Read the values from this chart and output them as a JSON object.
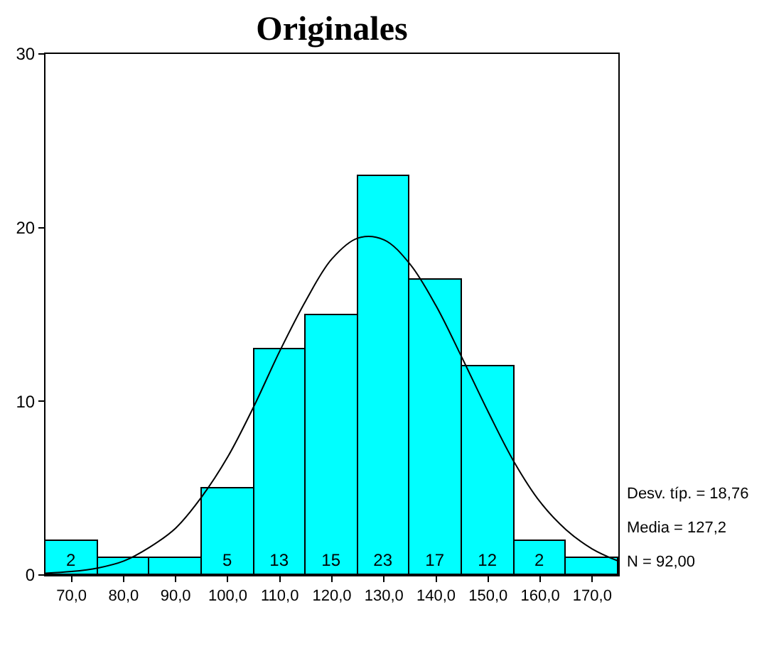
{
  "chart_data": {
    "type": "histogram",
    "title": "Originales",
    "bins": [
      65,
      75,
      85,
      95,
      105,
      115,
      125,
      135,
      145,
      155,
      165,
      175
    ],
    "values": [
      2,
      1,
      1,
      5,
      13,
      15,
      23,
      17,
      12,
      2,
      1
    ],
    "value_labels": [
      "2",
      null,
      null,
      "5",
      "13",
      "15",
      "23",
      "17",
      "12",
      "2",
      null
    ],
    "color": "#00ffff",
    "series": [
      {
        "type": "line",
        "color": "#000000",
        "x": [
          65,
          70,
          75,
          80,
          85,
          90,
          95,
          100,
          105,
          110,
          115,
          120,
          125,
          130,
          135,
          140,
          145,
          150,
          155,
          160,
          165,
          170,
          175
        ],
        "values": [
          0.1,
          0.2,
          0.4,
          0.8,
          1.6,
          2.7,
          4.5,
          6.8,
          9.7,
          12.9,
          15.8,
          18.2,
          19.4,
          19.3,
          17.9,
          15.5,
          12.5,
          9.4,
          6.5,
          4.2,
          2.6,
          1.5,
          0.8
        ]
      }
    ],
    "xlim": [
      65,
      175
    ],
    "xticks": [
      {
        "value": 70,
        "label": "70,0"
      },
      {
        "value": 80,
        "label": "80,0"
      },
      {
        "value": 90,
        "label": "90,0"
      },
      {
        "value": 100,
        "label": "100,0"
      },
      {
        "value": 110,
        "label": "110,0"
      },
      {
        "value": 120,
        "label": "120,0"
      },
      {
        "value": 130,
        "label": "130,0"
      },
      {
        "value": 140,
        "label": "140,0"
      },
      {
        "value": 150,
        "label": "150,0"
      },
      {
        "value": 160,
        "label": "160,0"
      },
      {
        "value": 170,
        "label": "170,0"
      }
    ],
    "ylim": [
      0,
      30
    ],
    "yticks": [
      0,
      10,
      20,
      30
    ],
    "grid": false,
    "annotations": [
      "Desv. típ. = 18,76",
      "Media = 127,2",
      "N = 92,00"
    ]
  }
}
